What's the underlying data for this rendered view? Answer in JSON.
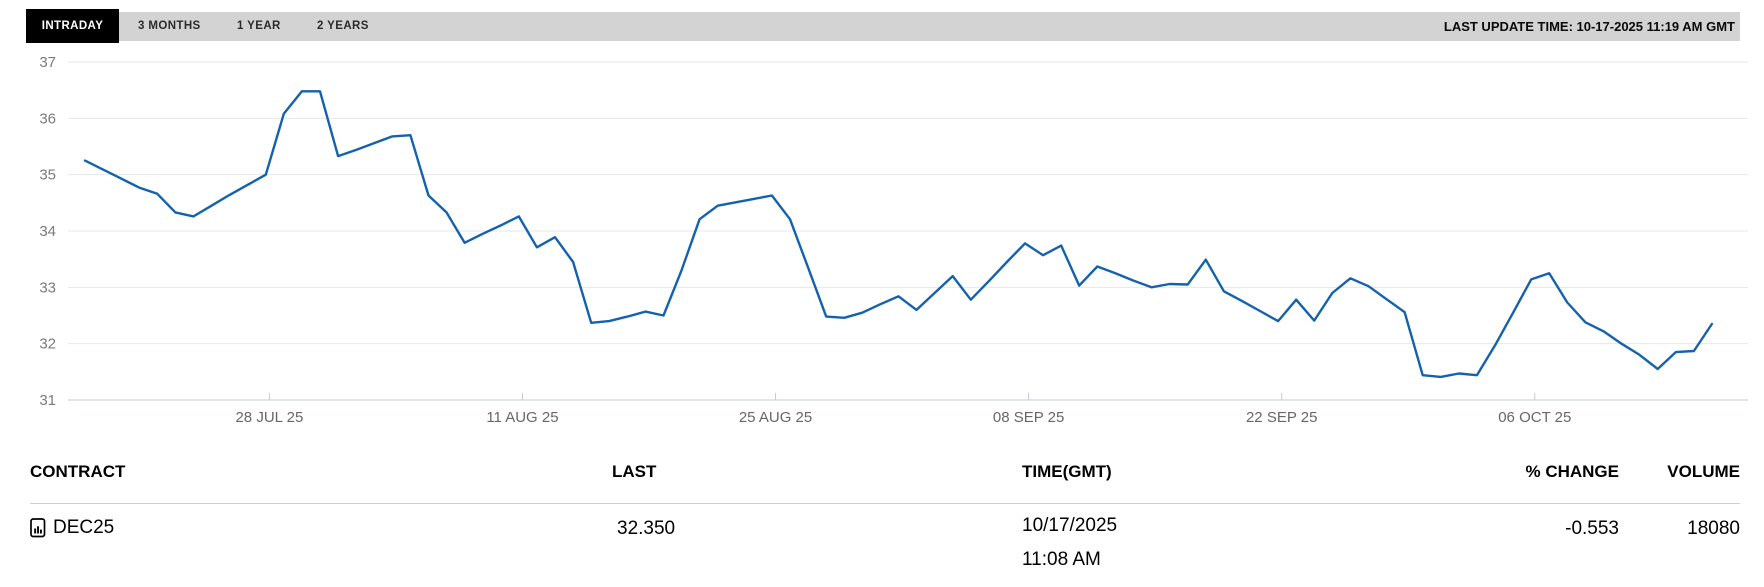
{
  "tabs": [
    {
      "label": "INTRADAY",
      "active": true
    },
    {
      "label": "3 MONTHS",
      "active": false
    },
    {
      "label": "1 YEAR",
      "active": false
    },
    {
      "label": "2 YEARS",
      "active": false
    }
  ],
  "last_update": "LAST UPDATE TIME: 10-17-2025 11:19 AM GMT",
  "chart_data": {
    "type": "line",
    "title": "",
    "xlabel": "",
    "ylabel": "",
    "ylim": [
      31,
      37
    ],
    "y_ticks": [
      31,
      32,
      33,
      34,
      35,
      36,
      37
    ],
    "x_ticks": [
      {
        "index": 10.2,
        "label": "28 JUL 25"
      },
      {
        "index": 24.2,
        "label": "11 AUG 25"
      },
      {
        "index": 38.2,
        "label": "25 AUG 25"
      },
      {
        "index": 52.2,
        "label": "08 SEP 25"
      },
      {
        "index": 66.2,
        "label": "22 SEP 25"
      },
      {
        "index": 80.2,
        "label": "06 OCT 25"
      }
    ],
    "grid": true,
    "legend": "none",
    "line_color": "#1462ad",
    "series": [
      {
        "name": "DEC25",
        "values": [
          35.25,
          35.09,
          34.93,
          34.77,
          34.66,
          34.33,
          34.26,
          34.45,
          34.64,
          34.82,
          35.0,
          36.08,
          36.48,
          36.48,
          35.33,
          35.44,
          35.56,
          35.68,
          35.7,
          34.63,
          34.33,
          33.79,
          33.95,
          34.1,
          34.26,
          33.71,
          33.89,
          33.45,
          32.37,
          32.4,
          32.48,
          32.57,
          32.5,
          33.3,
          34.21,
          34.45,
          34.51,
          34.57,
          34.63,
          34.21,
          33.35,
          32.48,
          32.46,
          32.55,
          32.7,
          32.84,
          32.6,
          32.9,
          33.2,
          32.78,
          33.11,
          33.45,
          33.78,
          33.57,
          33.74,
          33.03,
          33.37,
          33.25,
          33.12,
          33.0,
          33.06,
          33.05,
          33.49,
          32.93,
          32.76,
          32.58,
          32.4,
          32.78,
          32.41,
          32.9,
          33.16,
          33.02,
          32.79,
          32.56,
          31.44,
          31.41,
          31.47,
          31.44,
          31.97,
          32.55,
          33.14,
          33.25,
          32.73,
          32.38,
          32.22,
          32.0,
          31.8,
          31.55,
          31.85,
          31.87,
          32.35
        ]
      }
    ]
  },
  "table": {
    "headers": [
      "CONTRACT",
      "LAST",
      "TIME(GMT)",
      "% CHANGE",
      "VOLUME"
    ],
    "rows": [
      {
        "contract": "DEC25",
        "icon": "file-chart-icon",
        "last": "32.350",
        "time_date": "10/17/2025",
        "time_clock": "11:08 AM",
        "pct_change": "-0.553",
        "volume": "18080"
      }
    ]
  }
}
